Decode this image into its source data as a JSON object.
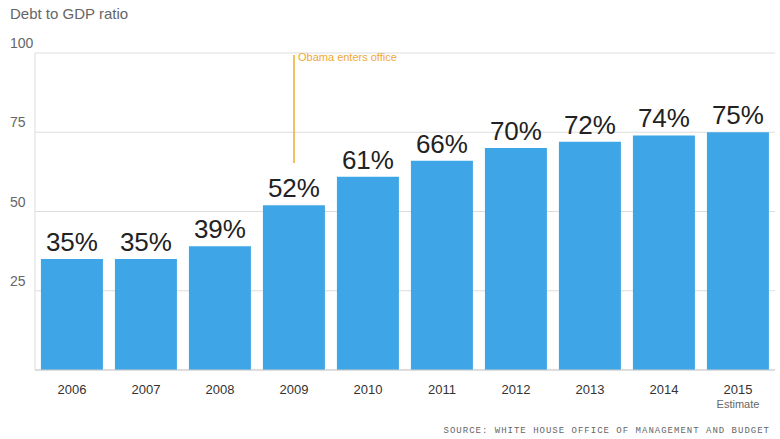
{
  "chart_data": {
    "type": "bar",
    "title": "Debt to GDP ratio",
    "categories": [
      "2006",
      "2007",
      "2008",
      "2009",
      "2010",
      "2011",
      "2012",
      "2013",
      "2014",
      "2015\nEstimate"
    ],
    "values": [
      35,
      35,
      39,
      52,
      61,
      66,
      70,
      72,
      74,
      75
    ],
    "value_labels": [
      "35%",
      "35%",
      "39%",
      "52%",
      "61%",
      "66%",
      "70%",
      "72%",
      "74%",
      "75%"
    ],
    "color": "#3ea6e6",
    "ylim": [
      0,
      100
    ],
    "yticks": [
      25,
      50,
      75,
      100
    ],
    "grid": true,
    "data_labels": true,
    "annotations": [
      {
        "text": "Obama enters office",
        "category": "2009"
      }
    ],
    "source": "SOURCE: WHITE HOUSE OFFICE OF MANAGEMENT AND BUDGET"
  }
}
